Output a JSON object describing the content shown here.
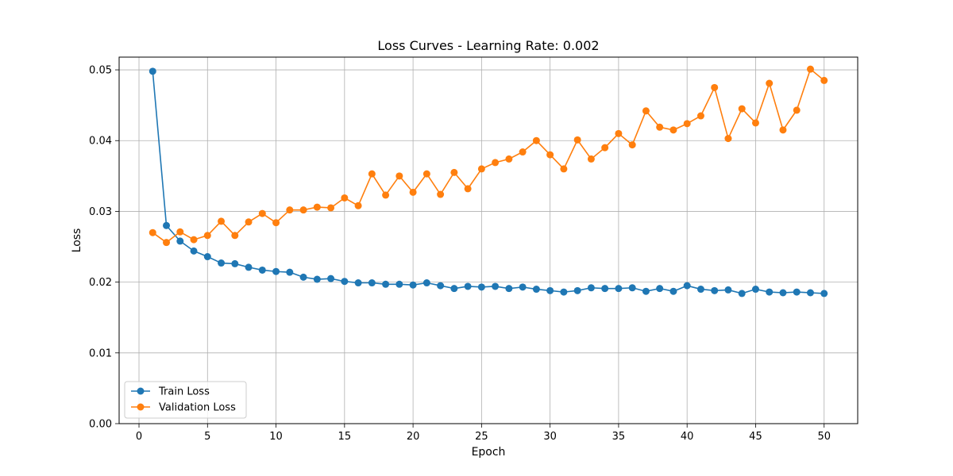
{
  "chart_data": {
    "type": "line",
    "title": "Loss Curves - Learning Rate: 0.002",
    "xlabel": "Epoch",
    "ylabel": "Loss",
    "xlim": [
      -1.45,
      52.45
    ],
    "ylim": [
      0.0,
      0.0518
    ],
    "xticks": [
      0,
      5,
      10,
      15,
      20,
      25,
      30,
      35,
      40,
      45,
      50
    ],
    "yticks": [
      0.0,
      0.01,
      0.02,
      0.03,
      0.04,
      0.05
    ],
    "xtick_labels": [
      "0",
      "5",
      "10",
      "15",
      "20",
      "25",
      "30",
      "35",
      "40",
      "45",
      "50"
    ],
    "ytick_labels": [
      "0.00",
      "0.01",
      "0.02",
      "0.03",
      "0.04",
      "0.05"
    ],
    "grid": true,
    "legend_position": "lower-left",
    "x": [
      1,
      2,
      3,
      4,
      5,
      6,
      7,
      8,
      9,
      10,
      11,
      12,
      13,
      14,
      15,
      16,
      17,
      18,
      19,
      20,
      21,
      22,
      23,
      24,
      25,
      26,
      27,
      28,
      29,
      30,
      31,
      32,
      33,
      34,
      35,
      36,
      37,
      38,
      39,
      40,
      41,
      42,
      43,
      44,
      45,
      46,
      47,
      48,
      49,
      50
    ],
    "series": [
      {
        "name": "Train Loss",
        "color": "#1f77b4",
        "values": [
          0.0498,
          0.028,
          0.0258,
          0.0244,
          0.0236,
          0.0227,
          0.0226,
          0.0221,
          0.0217,
          0.0215,
          0.0214,
          0.0207,
          0.0204,
          0.0205,
          0.0201,
          0.0199,
          0.0199,
          0.0197,
          0.0197,
          0.0196,
          0.0199,
          0.0195,
          0.0191,
          0.0194,
          0.0193,
          0.0194,
          0.0191,
          0.0193,
          0.019,
          0.0188,
          0.0186,
          0.0188,
          0.0192,
          0.0191,
          0.0191,
          0.0192,
          0.0187,
          0.0191,
          0.0187,
          0.0195,
          0.019,
          0.0188,
          0.0189,
          0.0184,
          0.019,
          0.0186,
          0.0185,
          0.0186,
          0.0185,
          0.0184
        ]
      },
      {
        "name": "Validation Loss",
        "color": "#ff7f0e",
        "values": [
          0.027,
          0.0256,
          0.0271,
          0.026,
          0.0266,
          0.0286,
          0.0266,
          0.0285,
          0.0297,
          0.0284,
          0.0302,
          0.0302,
          0.0306,
          0.0305,
          0.0319,
          0.0308,
          0.0353,
          0.0323,
          0.035,
          0.0327,
          0.0353,
          0.0324,
          0.0355,
          0.0332,
          0.036,
          0.0369,
          0.0374,
          0.0384,
          0.04,
          0.038,
          0.036,
          0.0401,
          0.0374,
          0.039,
          0.041,
          0.0394,
          0.0442,
          0.0419,
          0.0415,
          0.0424,
          0.0435,
          0.0475,
          0.0403,
          0.0445,
          0.0425,
          0.0481,
          0.0415,
          0.0443,
          0.0501,
          0.0485
        ]
      }
    ]
  }
}
